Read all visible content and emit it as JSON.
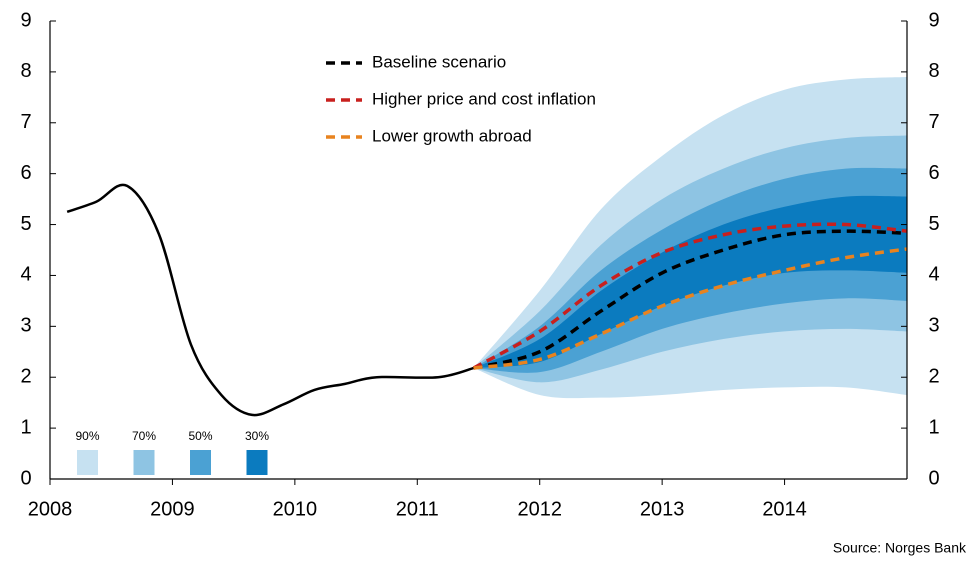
{
  "chart_data": {
    "type": "fan",
    "source": "Source: Norges Bank",
    "xlim": [
      2008,
      2015
    ],
    "xticks": [
      2008,
      2009,
      2010,
      2011,
      2012,
      2013,
      2014
    ],
    "ylim": [
      0,
      9
    ],
    "yticks": [
      0,
      1,
      2,
      3,
      4,
      5,
      6,
      7,
      8,
      9
    ],
    "y2lim": [
      0,
      9
    ],
    "y2ticks": [
      0,
      1,
      2,
      3,
      4,
      5,
      6,
      7,
      8,
      9
    ],
    "history": {
      "color": "#000000",
      "x": [
        2008.14,
        2008.38,
        2008.63,
        2008.89,
        2009.15,
        2009.4,
        2009.65,
        2009.91,
        2010.16,
        2010.41,
        2010.67,
        2011.17,
        2011.46
      ],
      "values": [
        5.25,
        5.45,
        5.76,
        4.81,
        2.65,
        1.65,
        1.26,
        1.47,
        1.75,
        1.87,
        2.0,
        2.0,
        2.18
      ]
    },
    "x": [
      2011.46,
      2012,
      2012.5,
      2013,
      2013.5,
      2014,
      2014.5,
      2015
    ],
    "bands": [
      {
        "label": "90%",
        "color": "#c6e1f1",
        "lower": [
          2.18,
          1.65,
          1.6,
          1.65,
          1.75,
          1.8,
          1.8,
          1.65
        ],
        "upper": [
          2.18,
          3.7,
          5.3,
          6.35,
          7.15,
          7.65,
          7.85,
          7.9
        ]
      },
      {
        "label": "70%",
        "color": "#8ec4e3",
        "lower": [
          2.18,
          1.9,
          2.15,
          2.5,
          2.75,
          2.9,
          2.95,
          2.9
        ],
        "upper": [
          2.18,
          3.3,
          4.6,
          5.5,
          6.1,
          6.5,
          6.7,
          6.75
        ]
      },
      {
        "label": "50%",
        "color": "#4ba1d3",
        "lower": [
          2.18,
          2.1,
          2.5,
          2.95,
          3.25,
          3.45,
          3.55,
          3.5
        ],
        "upper": [
          2.18,
          3.0,
          4.1,
          4.9,
          5.5,
          5.9,
          6.1,
          6.1
        ]
      },
      {
        "label": "30%",
        "color": "#0b7bbf",
        "lower": [
          2.18,
          2.3,
          2.85,
          3.4,
          3.8,
          4.05,
          4.1,
          4.05
        ],
        "upper": [
          2.18,
          2.75,
          3.7,
          4.45,
          5.0,
          5.35,
          5.55,
          5.55
        ]
      }
    ],
    "series": [
      {
        "name": "Baseline scenario",
        "color": "#000000",
        "values": [
          2.18,
          2.5,
          3.3,
          4.05,
          4.5,
          4.8,
          4.87,
          4.83
        ]
      },
      {
        "name": "Higher price and cost inflation",
        "color": "#c8201e",
        "values": [
          2.18,
          2.9,
          3.8,
          4.45,
          4.8,
          4.97,
          5.0,
          4.87
        ]
      },
      {
        "name": "Lower growth abroad",
        "color": "#e8831f",
        "values": [
          2.18,
          2.35,
          2.85,
          3.4,
          3.8,
          4.1,
          4.35,
          4.52
        ]
      }
    ]
  }
}
